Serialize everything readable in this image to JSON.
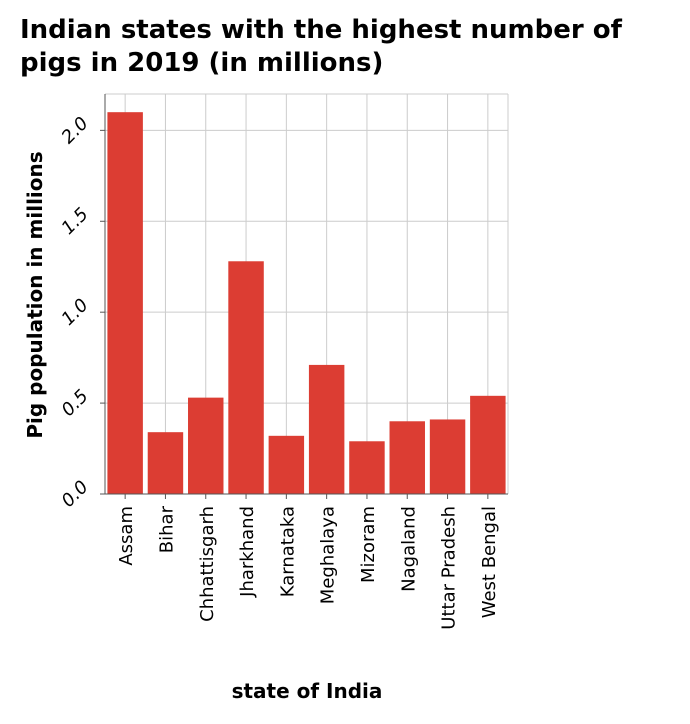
{
  "chart_data": {
    "type": "bar",
    "title_lines": [
      "Indian states with the highest number of",
      "pigs in 2019 (in millions)"
    ],
    "xlabel": "state of India",
    "ylabel": "Pig population in millions",
    "categories": [
      "Assam",
      "Bihar",
      "Chhattisgarh",
      "Jharkhand",
      "Karnataka",
      "Meghalaya",
      "Mizoram",
      "Nagaland",
      "Uttar Pradesh",
      "West Bengal"
    ],
    "values": [
      2.1,
      0.34,
      0.53,
      1.28,
      0.32,
      0.71,
      0.29,
      0.4,
      0.41,
      0.54
    ],
    "yticks": [
      "0.0",
      "0.5",
      "1.0",
      "1.5",
      "2.0"
    ],
    "ylim": [
      0,
      2.2
    ],
    "grid": true,
    "bar_color": "#dc3d33",
    "grid_color": "#cccccc"
  }
}
